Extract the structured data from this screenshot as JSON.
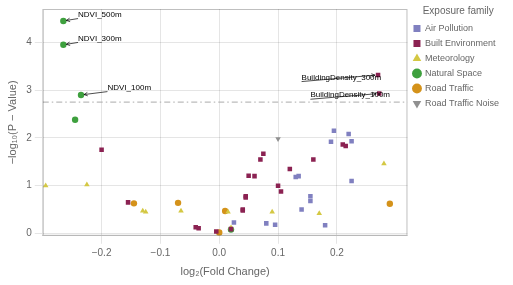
{
  "chart_data": {
    "type": "scatter",
    "xlabel": "log₂(Fold Change)",
    "ylabel": "−log₁₀(P − Value)",
    "xlim": [
      -0.3,
      0.32
    ],
    "ylim": [
      -0.05,
      4.7
    ],
    "xticks": [
      {
        "value": -0.2,
        "label": "−0.2"
      },
      {
        "value": -0.1,
        "label": "−0.1"
      },
      {
        "value": 0.0,
        "label": "0.0"
      },
      0.1,
      0.2
    ],
    "yticks": [
      0,
      1,
      2,
      3,
      4
    ],
    "grid": true,
    "legend": "right",
    "legend_title": "Exposure family",
    "significance_line": 2.75,
    "series": [
      {
        "name": "Air Pollution",
        "color": "#8080C0",
        "marker": "square",
        "x": [
          0.025,
          0.08,
          0.095,
          0.13,
          0.135,
          0.14,
          0.155,
          0.155,
          0.18,
          0.19,
          0.195,
          0.22,
          0.225,
          0.225
        ],
        "values": [
          0.23,
          0.21,
          0.18,
          1.18,
          1.2,
          0.5,
          0.78,
          0.68,
          0.17,
          1.92,
          2.15,
          2.08,
          1.93,
          1.1
        ]
      },
      {
        "name": "Built Environment",
        "color": "#8B2252",
        "marker": "square",
        "x": [
          -0.2,
          -0.155,
          -0.04,
          -0.035,
          -0.005,
          0.02,
          0.04,
          0.04,
          0.045,
          0.045,
          0.05,
          0.06,
          0.07,
          0.075,
          0.1,
          0.105,
          0.12,
          0.16,
          0.21,
          0.215,
          0.27,
          0.272
        ],
        "values": [
          1.75,
          0.65,
          0.13,
          0.11,
          0.04,
          0.09,
          0.5,
          0.48,
          0.78,
          0.75,
          1.21,
          1.2,
          1.55,
          1.67,
          1.0,
          0.88,
          1.35,
          1.55,
          1.86,
          1.83,
          3.32,
          2.93
        ]
      },
      {
        "name": "Meteorology",
        "color": "#D4C843",
        "marker": "triangle_up",
        "x": [
          -0.295,
          -0.225,
          -0.13,
          -0.125,
          -0.065,
          0.015,
          0.02,
          0.09,
          0.17,
          0.28
        ],
        "values": [
          1.0,
          1.02,
          0.47,
          0.45,
          0.47,
          0.45,
          0.12,
          0.45,
          0.42,
          1.46
        ]
      },
      {
        "name": "Natural Space",
        "color": "#3EA03E",
        "marker": "circle",
        "x": [
          -0.265,
          -0.265,
          -0.235,
          -0.245,
          0.02
        ],
        "values": [
          4.45,
          3.95,
          2.9,
          2.38,
          0.08
        ]
      },
      {
        "name": "Road Traffic",
        "color": "#D4921A",
        "marker": "circle",
        "x": [
          -0.145,
          -0.07,
          0.0,
          0.01,
          0.29
        ],
        "values": [
          0.63,
          0.64,
          0.02,
          0.47,
          0.62
        ]
      },
      {
        "name": "Road Traffic Noise",
        "color": "#909090",
        "marker": "triangle_down",
        "x": [
          0.1
        ],
        "values": [
          1.98
        ]
      }
    ],
    "annotations": [
      {
        "label": "NDVI_500m",
        "x": -0.265,
        "y": 4.45,
        "tx": -0.24,
        "ty": 4.5
      },
      {
        "label": "NDVI_300m",
        "x": -0.265,
        "y": 3.95,
        "tx": -0.24,
        "ty": 4.0
      },
      {
        "label": "NDVI_100m",
        "x": -0.235,
        "y": 2.9,
        "tx": -0.19,
        "ty": 2.97
      },
      {
        "label": "BuildingDensity_300m",
        "x": 0.27,
        "y": 3.32,
        "tx": 0.14,
        "ty": 3.18
      },
      {
        "label": "BuildingDensity_100m",
        "x": 0.272,
        "y": 2.93,
        "tx": 0.155,
        "ty": 2.81
      }
    ]
  }
}
